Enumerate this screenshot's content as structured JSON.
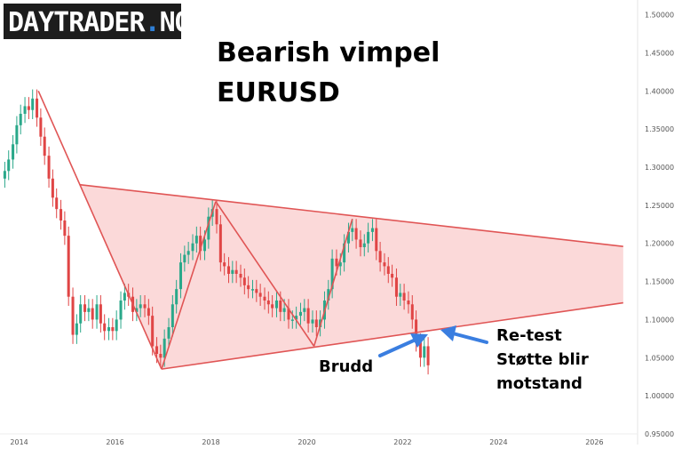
{
  "logo": {
    "text_main": "DAYTRADER",
    "text_dot": ".",
    "text_tld": "NO"
  },
  "chart_data": {
    "type": "candlestick",
    "title_line1": "Bearish vimpel",
    "title_line2": "EURUSD",
    "x_ticks": [
      "2014",
      "2016",
      "2018",
      "2020",
      "2022",
      "2024",
      "2026"
    ],
    "y_ticks": [
      "1.50000",
      "1.45000",
      "1.40000",
      "1.35000",
      "1.30000",
      "1.25000",
      "1.20000",
      "1.15000",
      "1.10000",
      "1.05000",
      "1.00000",
      "0.95000"
    ],
    "xlim": [
      2013.6,
      2026.9
    ],
    "ylim": [
      0.95,
      1.51
    ],
    "annotations": {
      "brudd": "Brudd",
      "retest_1": "Re-test",
      "retest_2": "Støtte blir",
      "retest_3": "motstand"
    },
    "series": [
      {
        "t": [
          2013.7,
          2013.78,
          2013.87,
          2013.95,
          2014.03,
          2014.12,
          2014.2,
          2014.28,
          2014.37,
          2014.45,
          2014.53,
          2014.62,
          2014.7,
          2014.78,
          2014.87,
          2014.95,
          2015.03,
          2015.12,
          2015.2,
          2015.28,
          2015.37,
          2015.45,
          2015.53,
          2015.62,
          2015.7,
          2015.78,
          2015.87,
          2015.95,
          2016.03,
          2016.12,
          2016.2,
          2016.28,
          2016.37,
          2016.45,
          2016.53,
          2016.62,
          2016.7,
          2016.78,
          2016.87,
          2016.95,
          2017.03,
          2017.12,
          2017.2,
          2017.28,
          2017.37,
          2017.45,
          2017.53,
          2017.62,
          2017.7,
          2017.78,
          2017.87,
          2017.95,
          2018.03,
          2018.12,
          2018.2,
          2018.28,
          2018.37,
          2018.45,
          2018.53,
          2018.62,
          2018.7,
          2018.78,
          2018.87,
          2018.95,
          2019.03,
          2019.12,
          2019.2,
          2019.28,
          2019.37,
          2019.45,
          2019.53,
          2019.62,
          2019.7,
          2019.78,
          2019.87,
          2019.95,
          2020.03,
          2020.12,
          2020.2,
          2020.28,
          2020.37,
          2020.45,
          2020.53,
          2020.62,
          2020.7,
          2020.78,
          2020.87,
          2020.95,
          2021.03,
          2021.12,
          2021.2,
          2021.28,
          2021.37,
          2021.45,
          2021.53,
          2021.62,
          2021.7,
          2021.78,
          2021.87,
          2021.95,
          2022.03,
          2022.12,
          2022.2,
          2022.28,
          2022.37,
          2022.45,
          2022.53
        ],
        "close": [
          1.295,
          1.31,
          1.33,
          1.355,
          1.37,
          1.38,
          1.375,
          1.39,
          1.365,
          1.34,
          1.315,
          1.285,
          1.26,
          1.245,
          1.23,
          1.21,
          1.13,
          1.08,
          1.095,
          1.12,
          1.11,
          1.115,
          1.1,
          1.12,
          1.095,
          1.085,
          1.09,
          1.085,
          1.1,
          1.125,
          1.135,
          1.13,
          1.11,
          1.115,
          1.12,
          1.115,
          1.105,
          1.065,
          1.055,
          1.05,
          1.075,
          1.09,
          1.12,
          1.14,
          1.175,
          1.185,
          1.19,
          1.2,
          1.21,
          1.19,
          1.205,
          1.235,
          1.245,
          1.225,
          1.175,
          1.17,
          1.16,
          1.165,
          1.16,
          1.155,
          1.145,
          1.14,
          1.14,
          1.135,
          1.13,
          1.125,
          1.12,
          1.115,
          1.125,
          1.11,
          1.115,
          1.1,
          1.1,
          1.105,
          1.11,
          1.115,
          1.095,
          1.1,
          1.09,
          1.1,
          1.125,
          1.14,
          1.18,
          1.17,
          1.175,
          1.2,
          1.215,
          1.22,
          1.205,
          1.195,
          1.2,
          1.215,
          1.22,
          1.19,
          1.175,
          1.17,
          1.16,
          1.155,
          1.13,
          1.135,
          1.125,
          1.12,
          1.1,
          1.07,
          1.05,
          1.065,
          1.04
        ]
      }
    ]
  }
}
